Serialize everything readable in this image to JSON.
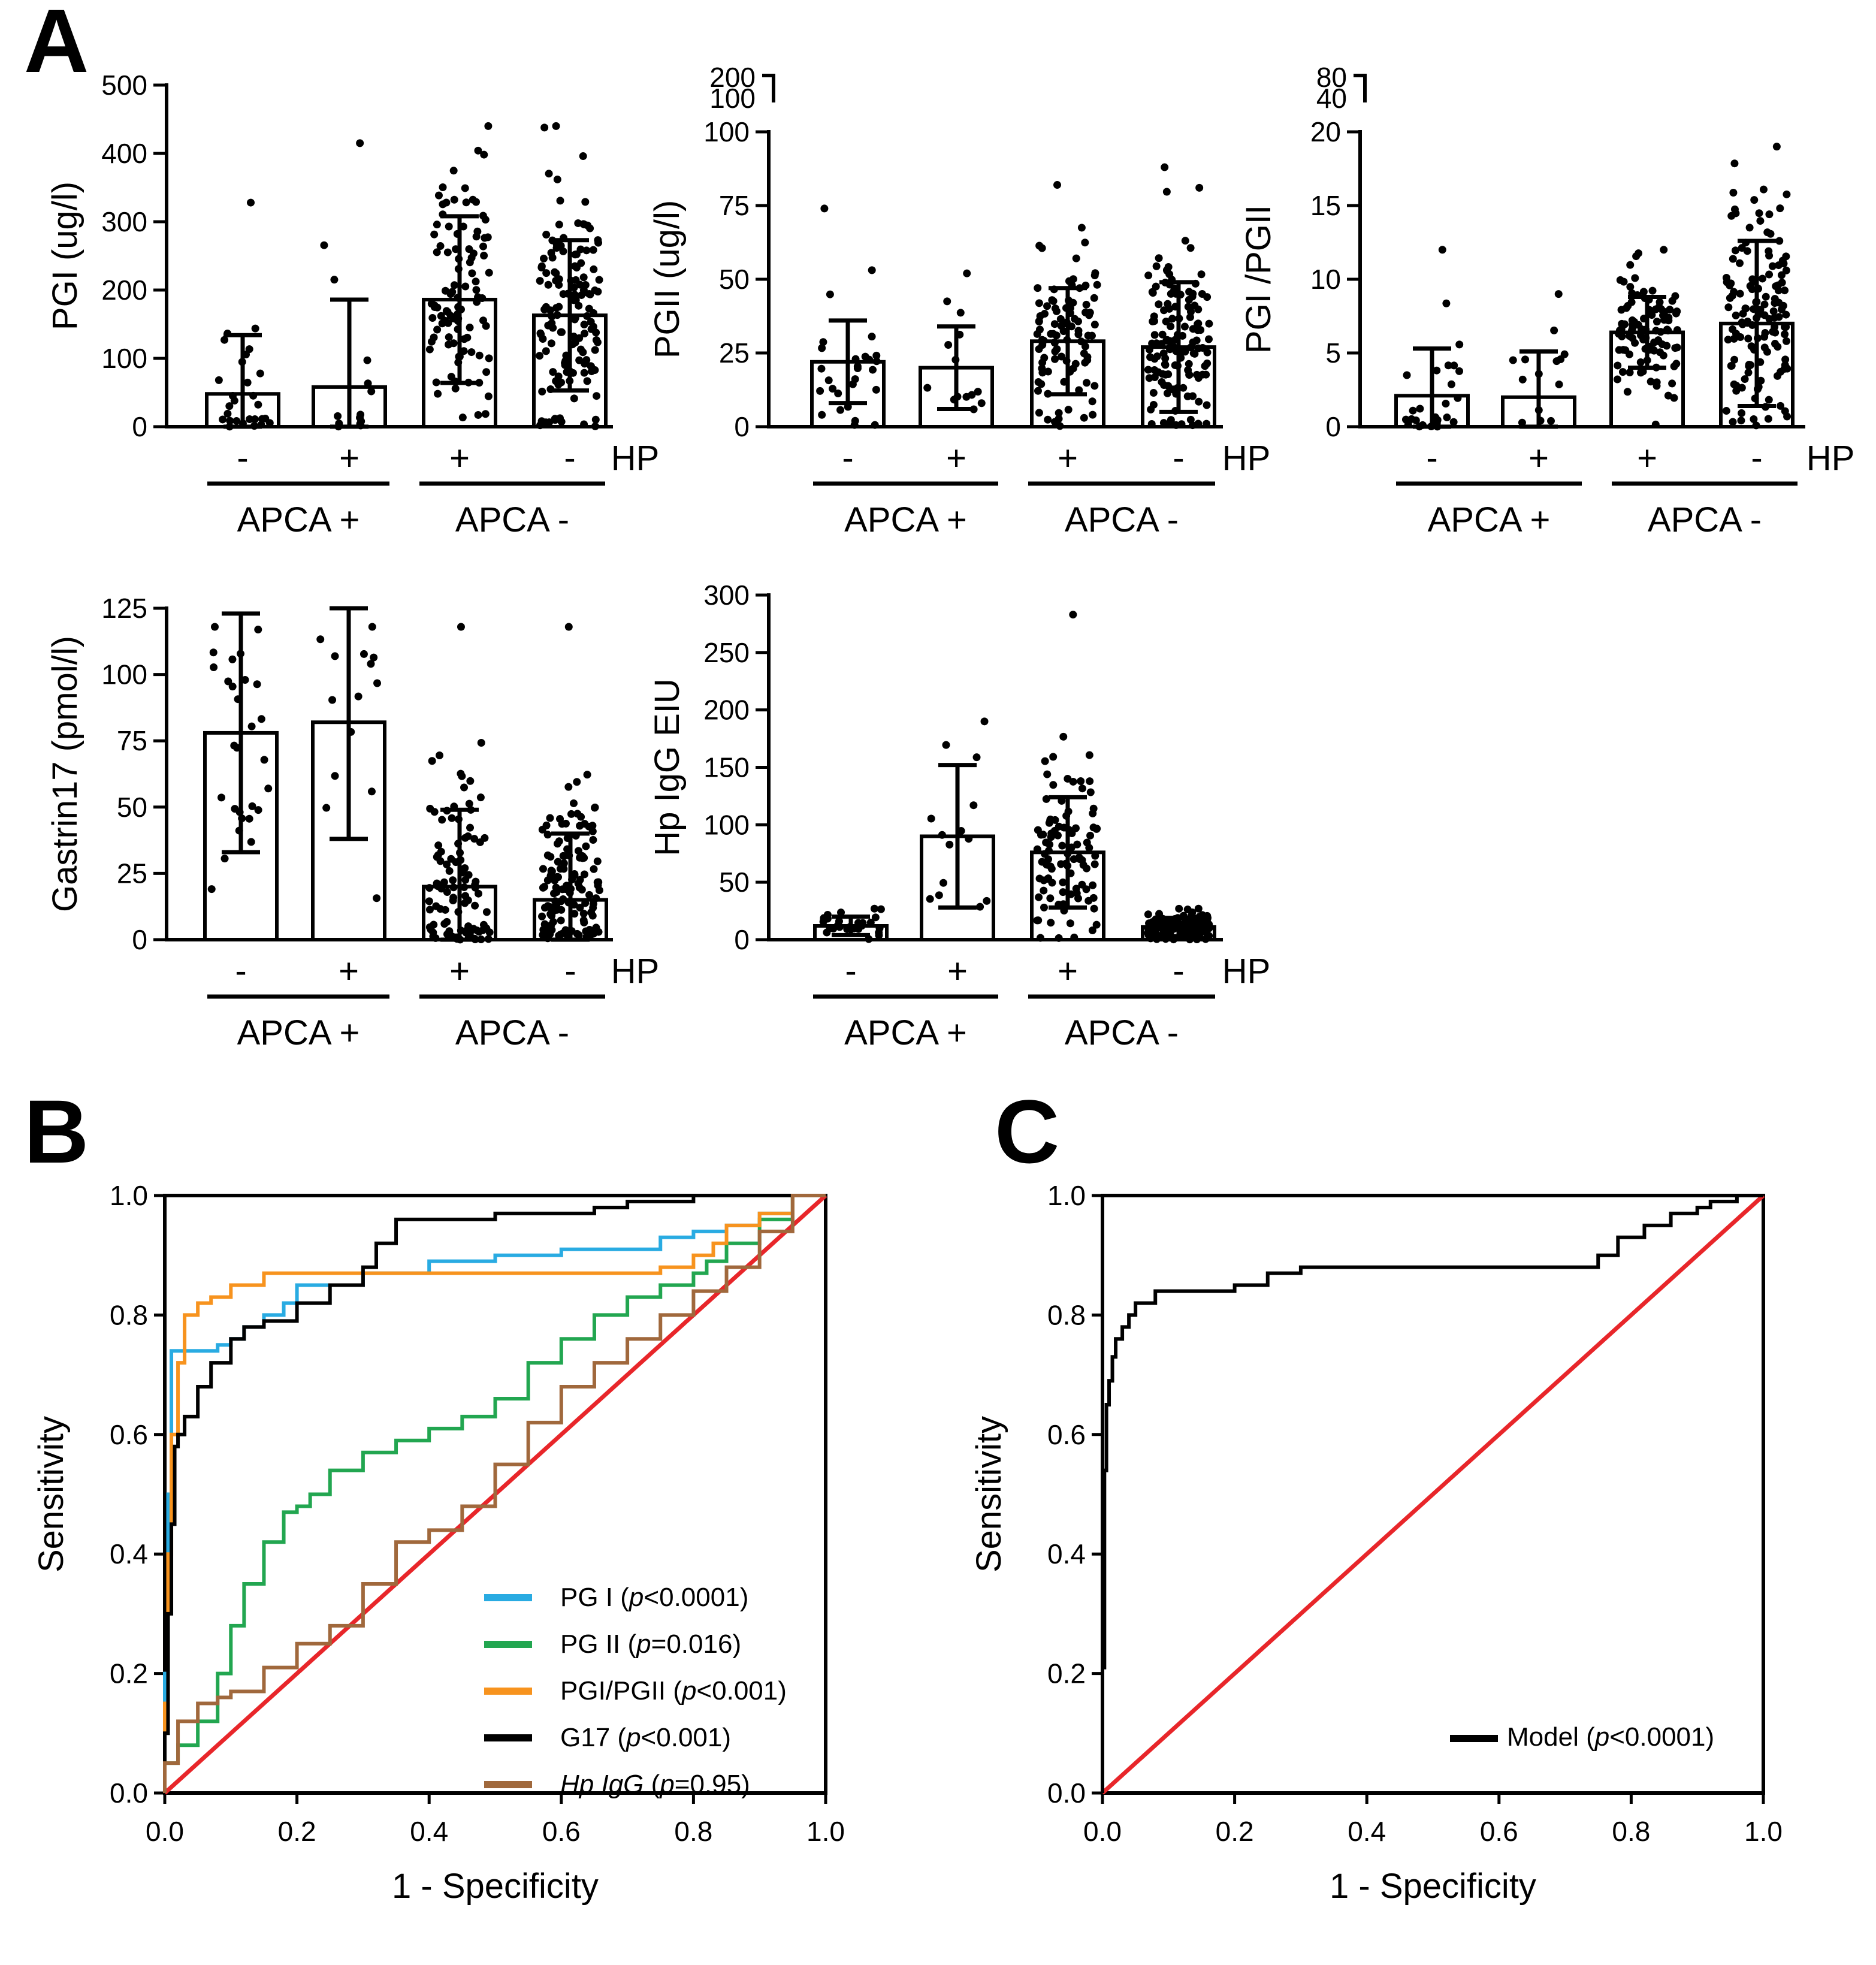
{
  "panel_labels": {
    "a": "A",
    "b": "B",
    "c": "C"
  },
  "group_axis": {
    "hp_label": "HP",
    "hp_values": [
      "-",
      "+",
      "+",
      "-"
    ],
    "apca_labels": [
      "APCA +",
      "APCA -"
    ]
  },
  "chart_data": [
    {
      "id": "pgi",
      "type": "bar",
      "title": "",
      "ylabel": "PGI (ug/l)",
      "ylim": [
        0,
        500
      ],
      "yticks": [
        0,
        100,
        200,
        300,
        400,
        500
      ],
      "y_tick_labels": [
        "0",
        "100",
        "200",
        "300",
        "400",
        "500"
      ],
      "categories": [
        "APCA + / HP -",
        "APCA + / HP +",
        "APCA - / HP +",
        "APCA - / HP -"
      ],
      "values": [
        48,
        58,
        186,
        163
      ],
      "sd": [
        86,
        128,
        122,
        110
      ],
      "n_points": [
        28,
        14,
        100,
        140
      ],
      "max_points": [
        328,
        415,
        440,
        440
      ]
    },
    {
      "id": "pgii",
      "type": "bar",
      "ylabel": "PGII (ug/l)",
      "ylim": [
        0,
        100
      ],
      "yticks": [
        0,
        25,
        50,
        75,
        100
      ],
      "y_tick_labels": [
        "0",
        "25",
        "50",
        "75",
        "100"
      ],
      "axis_break_labels": [
        "200",
        "100"
      ],
      "categories": [
        "APCA + / HP -",
        "APCA + / HP +",
        "APCA - / HP +",
        "APCA - / HP -"
      ],
      "values": [
        22,
        20,
        29,
        27
      ],
      "sd": [
        14,
        14,
        18,
        22
      ],
      "n_points": [
        28,
        14,
        100,
        140
      ],
      "max_points": [
        74,
        52,
        82,
        88
      ]
    },
    {
      "id": "ratio",
      "type": "bar",
      "ylabel": "PGI /PGII",
      "ylim": [
        0,
        20
      ],
      "yticks": [
        0,
        5,
        10,
        15,
        20
      ],
      "y_tick_labels": [
        "0",
        "5",
        "10",
        "15",
        "20"
      ],
      "axis_break_labels": [
        "80",
        "40"
      ],
      "categories": [
        "APCA + / HP -",
        "APCA + / HP +",
        "APCA - / HP +",
        "APCA - / HP -"
      ],
      "values": [
        2.1,
        2.0,
        6.4,
        7.0
      ],
      "sd": [
        3.2,
        3.1,
        2.4,
        5.6
      ],
      "n_points": [
        28,
        14,
        100,
        140
      ],
      "max_points": [
        12,
        9,
        12,
        19
      ]
    },
    {
      "id": "g17",
      "type": "bar",
      "ylabel": "Gastrin17 (pmol/l)",
      "ylim": [
        0,
        125
      ],
      "yticks": [
        0,
        25,
        50,
        75,
        100,
        125
      ],
      "y_tick_labels": [
        "0",
        "25",
        "50",
        "75",
        "100",
        "125"
      ],
      "categories": [
        "APCA + / HP -",
        "APCA + / HP +",
        "APCA - / HP +",
        "APCA - / HP -"
      ],
      "values": [
        78,
        82,
        20,
        15
      ],
      "sd": [
        45,
        44,
        29,
        25
      ],
      "n_points": [
        28,
        14,
        100,
        140
      ],
      "max_points": [
        118,
        118,
        118,
        118
      ]
    },
    {
      "id": "hpigg",
      "type": "bar",
      "ylabel": "Hp IgG EIU",
      "ylim": [
        0,
        300
      ],
      "yticks": [
        0,
        50,
        100,
        150,
        200,
        250,
        300
      ],
      "y_tick_labels": [
        "0",
        "50",
        "100",
        "150",
        "200",
        "250",
        "300"
      ],
      "categories": [
        "APCA + / HP -",
        "APCA + / HP +",
        "APCA - / HP +",
        "APCA - / HP -"
      ],
      "values": [
        12,
        90,
        76,
        11
      ],
      "sd": [
        8,
        62,
        48,
        8
      ],
      "n_points": [
        28,
        14,
        100,
        140
      ],
      "max_points": [
        27,
        190,
        283,
        27
      ]
    },
    {
      "id": "roc_b",
      "type": "line",
      "xlabel": "1 - Specificity",
      "ylabel": "Sensitivity",
      "xlim": [
        0,
        1
      ],
      "ylim": [
        0,
        1
      ],
      "x_tick_labels": [
        "0.0",
        "0.2",
        "0.4",
        "0.6",
        "0.8",
        "1.0"
      ],
      "y_tick_labels": [
        "0.0",
        "0.2",
        "0.4",
        "0.6",
        "0.8",
        "1.0"
      ],
      "reference_line": {
        "color": "#e8262a",
        "x": [
          0,
          1
        ],
        "y": [
          0,
          1
        ]
      },
      "series": [
        {
          "name": "PG I",
          "p_value": "<0.0001",
          "color": "#29abe2",
          "x": [
            0,
            0.005,
            0.01,
            0.02,
            0.03,
            0.05,
            0.08,
            0.1,
            0.12,
            0.15,
            0.18,
            0.2,
            0.3,
            0.35,
            0.4,
            0.5,
            0.6,
            0.7,
            0.75,
            0.8,
            0.85,
            0.9,
            0.95,
            1
          ],
          "y": [
            0,
            0.2,
            0.5,
            0.74,
            0.74,
            0.74,
            0.74,
            0.75,
            0.76,
            0.78,
            0.8,
            0.82,
            0.85,
            0.87,
            0.87,
            0.89,
            0.9,
            0.91,
            0.91,
            0.93,
            0.94,
            0.95,
            0.97,
            1
          ]
        },
        {
          "name": "PG II",
          "p_value": "=0.016",
          "color": "#22a650",
          "x": [
            0,
            0.02,
            0.05,
            0.08,
            0.1,
            0.12,
            0.15,
            0.18,
            0.2,
            0.22,
            0.25,
            0.3,
            0.35,
            0.4,
            0.45,
            0.5,
            0.55,
            0.6,
            0.65,
            0.7,
            0.75,
            0.8,
            0.82,
            0.85,
            0.9,
            0.95,
            1
          ],
          "y": [
            0,
            0.05,
            0.08,
            0.12,
            0.2,
            0.28,
            0.35,
            0.42,
            0.47,
            0.48,
            0.5,
            0.54,
            0.57,
            0.59,
            0.61,
            0.63,
            0.66,
            0.72,
            0.76,
            0.8,
            0.83,
            0.85,
            0.87,
            0.89,
            0.92,
            0.96,
            1
          ]
        },
        {
          "name": "PGI/PGII",
          "p_value": "<0.001",
          "color": "#f7931e",
          "x": [
            0,
            0.005,
            0.01,
            0.02,
            0.03,
            0.05,
            0.07,
            0.1,
            0.15,
            0.2,
            0.3,
            0.4,
            0.5,
            0.6,
            0.7,
            0.75,
            0.8,
            0.83,
            0.85,
            0.9,
            0.95,
            1
          ],
          "y": [
            0,
            0.15,
            0.4,
            0.6,
            0.72,
            0.8,
            0.82,
            0.83,
            0.85,
            0.87,
            0.87,
            0.87,
            0.87,
            0.87,
            0.87,
            0.87,
            0.88,
            0.9,
            0.92,
            0.95,
            0.97,
            1
          ]
        },
        {
          "name": "G17",
          "p_value": "<0.001",
          "color": "#000000",
          "x": [
            0,
            0.005,
            0.01,
            0.015,
            0.02,
            0.03,
            0.05,
            0.07,
            0.1,
            0.12,
            0.15,
            0.2,
            0.25,
            0.3,
            0.32,
            0.35,
            0.4,
            0.5,
            0.6,
            0.65,
            0.7,
            0.8,
            0.9,
            1
          ],
          "y": [
            0,
            0.1,
            0.3,
            0.45,
            0.58,
            0.6,
            0.63,
            0.68,
            0.72,
            0.76,
            0.78,
            0.79,
            0.82,
            0.85,
            0.88,
            0.92,
            0.96,
            0.96,
            0.97,
            0.97,
            0.98,
            0.99,
            1,
            1
          ]
        },
        {
          "name": "Hp IgG",
          "p_value": "=0.95",
          "color": "#a0683c",
          "x": [
            0,
            0.02,
            0.05,
            0.08,
            0.1,
            0.15,
            0.2,
            0.25,
            0.3,
            0.35,
            0.4,
            0.45,
            0.5,
            0.55,
            0.6,
            0.65,
            0.7,
            0.75,
            0.8,
            0.85,
            0.9,
            0.95,
            1
          ],
          "y": [
            0,
            0.05,
            0.12,
            0.15,
            0.16,
            0.17,
            0.21,
            0.25,
            0.28,
            0.35,
            0.42,
            0.44,
            0.48,
            0.55,
            0.62,
            0.68,
            0.72,
            0.76,
            0.8,
            0.84,
            0.88,
            0.94,
            1
          ]
        }
      ]
    },
    {
      "id": "roc_c",
      "type": "line",
      "xlabel": "1 - Specificity",
      "ylabel": "Sensitivity",
      "xlim": [
        0,
        1
      ],
      "ylim": [
        0,
        1
      ],
      "x_tick_labels": [
        "0.0",
        "0.2",
        "0.4",
        "0.6",
        "0.8",
        "1.0"
      ],
      "y_tick_labels": [
        "0.0",
        "0.2",
        "0.4",
        "0.6",
        "0.8",
        "1.0"
      ],
      "reference_line": {
        "color": "#e8262a",
        "x": [
          0,
          1
        ],
        "y": [
          0,
          1
        ]
      },
      "series": [
        {
          "name": "Model",
          "p_value": "<0.0001",
          "color": "#000000",
          "x": [
            0,
            0.003,
            0.006,
            0.01,
            0.015,
            0.02,
            0.03,
            0.04,
            0.05,
            0.06,
            0.08,
            0.1,
            0.15,
            0.2,
            0.25,
            0.3,
            0.35,
            0.45,
            0.55,
            0.65,
            0.75,
            0.78,
            0.82,
            0.86,
            0.9,
            0.92,
            0.96,
            1
          ],
          "y": [
            0,
            0.21,
            0.54,
            0.65,
            0.69,
            0.73,
            0.76,
            0.78,
            0.8,
            0.82,
            0.82,
            0.84,
            0.84,
            0.84,
            0.85,
            0.87,
            0.88,
            0.88,
            0.88,
            0.88,
            0.88,
            0.9,
            0.93,
            0.95,
            0.97,
            0.98,
            0.99,
            1
          ]
        }
      ]
    }
  ]
}
